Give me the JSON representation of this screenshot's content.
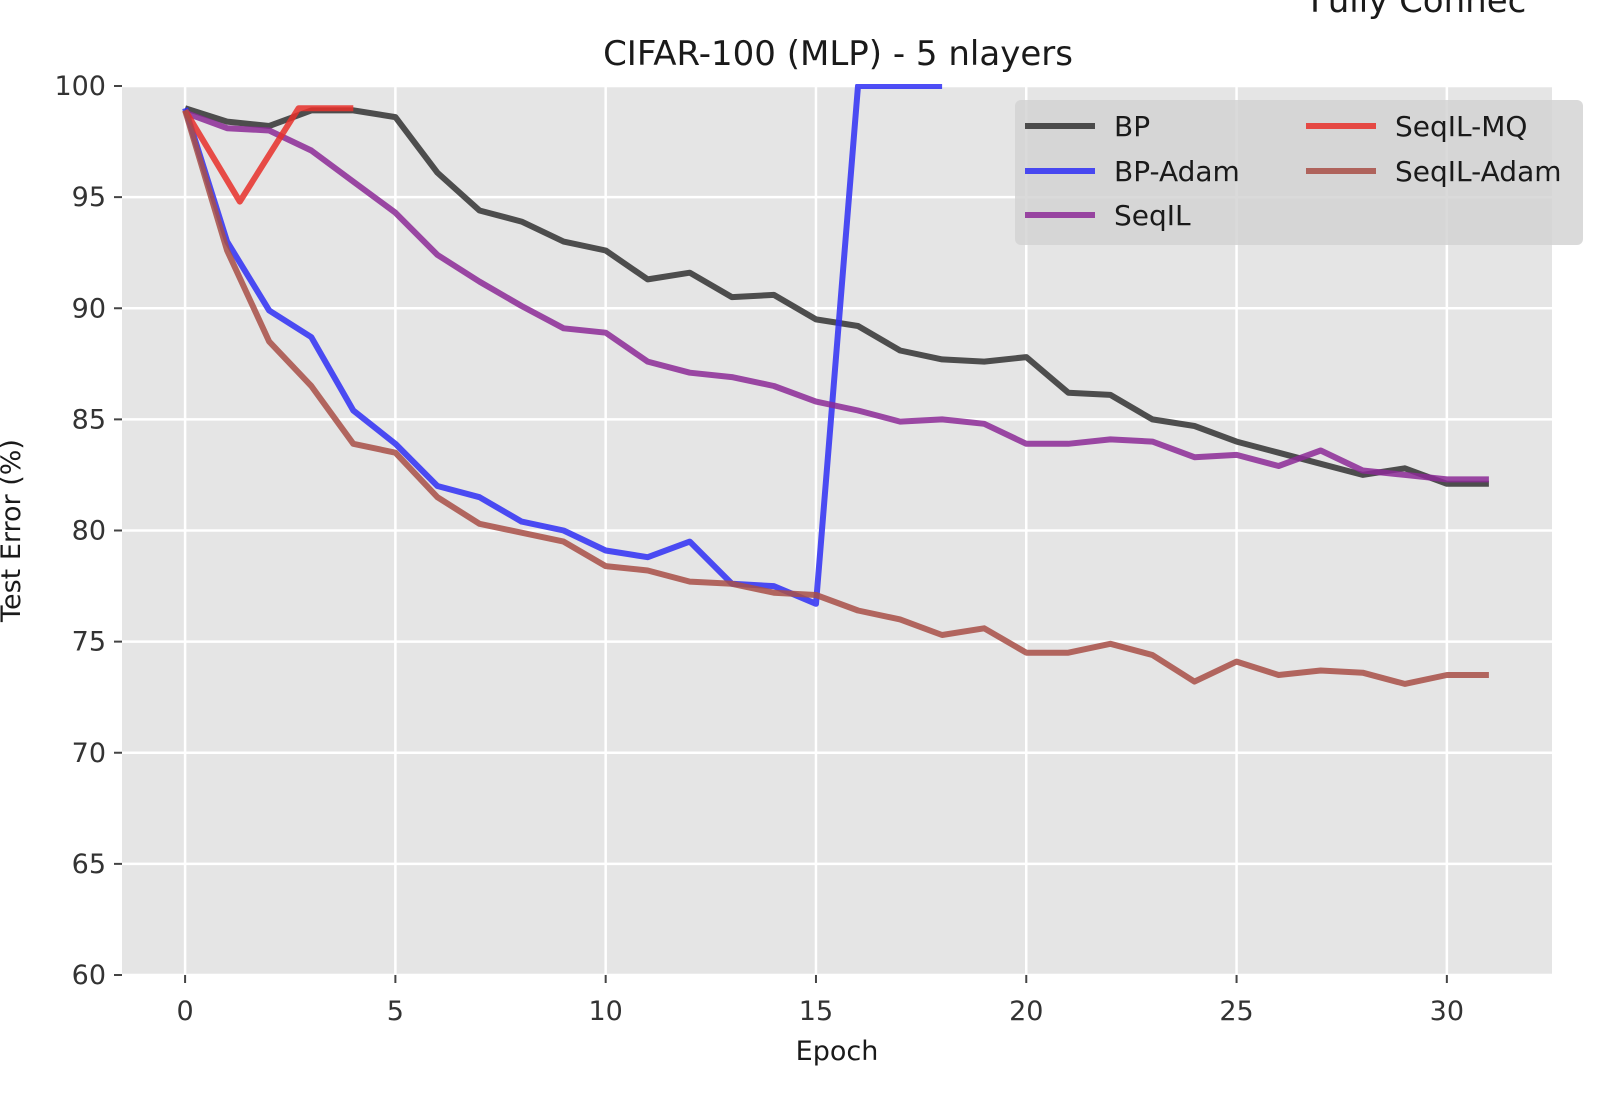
{
  "corner_text": "Fully Connec",
  "chart_data": {
    "type": "line",
    "title": "CIFAR-100 (MLP) - 5 nlayers",
    "xlabel": "Epoch",
    "ylabel": "Test Error (%)",
    "xlim": [
      -1.5,
      32.5
    ],
    "ylim": [
      60,
      100
    ],
    "xticks": [
      0,
      5,
      10,
      15,
      20,
      25,
      30
    ],
    "yticks": [
      60,
      65,
      70,
      75,
      80,
      85,
      90,
      95,
      100
    ],
    "grid": true,
    "legend_position": "top-right",
    "series": [
      {
        "name": "BP",
        "color": "#333333",
        "x": [
          0,
          1,
          2,
          3,
          4,
          5,
          6,
          7,
          8,
          9,
          10,
          11,
          12,
          13,
          14,
          15,
          16,
          17,
          18,
          19,
          20,
          21,
          22,
          23,
          24,
          25,
          26,
          27,
          28,
          29,
          30,
          31
        ],
        "y": [
          99.0,
          98.4,
          98.2,
          98.9,
          98.9,
          98.6,
          96.1,
          94.4,
          93.9,
          93.0,
          92.6,
          91.3,
          91.6,
          90.5,
          90.6,
          89.5,
          89.2,
          88.1,
          87.7,
          87.6,
          87.8,
          86.2,
          86.1,
          85.0,
          84.7,
          84.0,
          83.5,
          83.0,
          82.5,
          82.8,
          82.1,
          82.1
        ]
      },
      {
        "name": "BP-Adam",
        "color": "#2f2ff5",
        "x": [
          0,
          1,
          2,
          3,
          4,
          5,
          6,
          7,
          8,
          9,
          10,
          11,
          12,
          13,
          14,
          15,
          16,
          17,
          18
        ],
        "y": [
          99.0,
          93.0,
          89.9,
          88.7,
          85.4,
          83.9,
          82.0,
          81.5,
          80.4,
          80.0,
          79.1,
          78.8,
          79.5,
          77.6,
          77.5,
          76.7,
          100.0,
          100.0,
          100.0
        ]
      },
      {
        "name": "SeqIL",
        "color": "#8c2a96",
        "x": [
          0,
          1,
          2,
          3,
          4,
          5,
          6,
          7,
          8,
          9,
          10,
          11,
          12,
          13,
          14,
          15,
          16,
          17,
          18,
          19,
          20,
          21,
          22,
          23,
          24,
          25,
          26,
          27,
          28,
          29,
          30,
          31
        ],
        "y": [
          98.8,
          98.1,
          98.0,
          97.1,
          95.7,
          94.3,
          92.4,
          91.2,
          90.1,
          89.1,
          88.9,
          87.6,
          87.1,
          86.9,
          86.5,
          85.8,
          85.4,
          84.9,
          85.0,
          84.8,
          83.9,
          83.9,
          84.1,
          84.0,
          83.3,
          83.4,
          82.9,
          83.6,
          82.7,
          82.5,
          82.3,
          82.3
        ]
      },
      {
        "name": "SeqIL-MQ",
        "color": "#e8302a",
        "x": [
          0,
          1.3,
          2.7,
          3.3,
          4.0
        ],
        "y": [
          98.9,
          94.8,
          99.0,
          99.0,
          99.0
        ]
      },
      {
        "name": "SeqIL-Adam",
        "color": "#a84f47",
        "x": [
          0,
          1,
          2,
          3,
          4,
          5,
          6,
          7,
          8,
          9,
          10,
          11,
          12,
          13,
          14,
          15,
          16,
          17,
          18,
          19,
          20,
          21,
          22,
          23,
          24,
          25,
          26,
          27,
          28,
          29,
          30,
          31
        ],
        "y": [
          98.9,
          92.6,
          88.5,
          86.5,
          83.9,
          83.5,
          81.5,
          80.3,
          79.9,
          79.5,
          78.4,
          78.2,
          77.7,
          77.6,
          77.2,
          77.1,
          76.4,
          76.0,
          75.3,
          75.6,
          74.5,
          74.5,
          74.9,
          74.4,
          73.2,
          74.1,
          73.5,
          73.7,
          73.6,
          73.1,
          73.5,
          73.5
        ]
      }
    ]
  }
}
